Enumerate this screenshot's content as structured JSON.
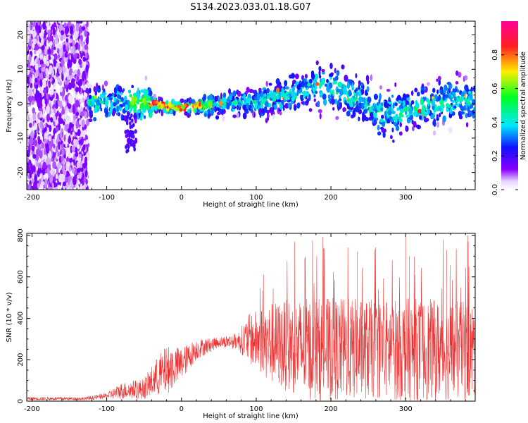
{
  "title": "S134.2023.033.01.18.G07",
  "colors": {
    "snr_line": "#ee3030",
    "axis": "#000000"
  },
  "chart_data": [
    {
      "type": "heatmap",
      "xlabel": "Height of straight line (km)",
      "ylabel": "Frequency (Hz)",
      "xlim": [
        -207,
        393
      ],
      "ylim": [
        -25,
        24
      ],
      "xticks": [
        -200,
        -100,
        0,
        100,
        200,
        300
      ],
      "yticks": [
        -20,
        -10,
        0,
        10,
        20
      ],
      "tick_labels_x": [
        "-200",
        "-100",
        "0",
        "100",
        "200",
        "300"
      ],
      "tick_labels_y": [
        "-20",
        "-10",
        "0",
        "10",
        "20"
      ],
      "colorbar": {
        "label": "Normalized spectral amplitude",
        "range": [
          0,
          1
        ],
        "ticks": [
          0.0,
          0.2,
          0.4,
          0.6,
          0.8
        ],
        "tick_labels": [
          "0.0",
          "0.2",
          "0.4",
          "0.6",
          "0.8"
        ]
      },
      "ridge_profile": [
        {
          "x": -120,
          "y": 0.0
        },
        {
          "x": -80,
          "y": 0.5
        },
        {
          "x": -50,
          "y": 0.2
        },
        {
          "x": -20,
          "y": -0.8
        },
        {
          "x": 0,
          "y": -1.2
        },
        {
          "x": 30,
          "y": -0.5
        },
        {
          "x": 60,
          "y": 0.0
        },
        {
          "x": 90,
          "y": 0.5
        },
        {
          "x": 120,
          "y": 1.5
        },
        {
          "x": 150,
          "y": 3.0
        },
        {
          "x": 175,
          "y": 5.0
        },
        {
          "x": 200,
          "y": 4.5
        },
        {
          "x": 230,
          "y": 2.0
        },
        {
          "x": 260,
          "y": -2.0
        },
        {
          "x": 290,
          "y": -3.0
        },
        {
          "x": 320,
          "y": -1.0
        },
        {
          "x": 360,
          "y": 1.0
        },
        {
          "x": 393,
          "y": 1.0
        }
      ]
    },
    {
      "type": "line",
      "xlabel": "Height of straight line (km)",
      "ylabel": "SNR (10 * v/v)",
      "xlim": [
        -207,
        393
      ],
      "ylim": [
        0,
        810
      ],
      "xticks": [
        -200,
        -100,
        0,
        100,
        200,
        300
      ],
      "yticks": [
        0,
        200,
        400,
        600,
        800
      ],
      "tick_labels_x": [
        "-200",
        "-100",
        "0",
        "100",
        "200",
        "300"
      ],
      "tick_labels_y": [
        "0",
        "200",
        "400",
        "600",
        "800"
      ],
      "envelope": [
        {
          "x": -207,
          "mean": 12,
          "spread": 8
        },
        {
          "x": -130,
          "mean": 12,
          "spread": 8
        },
        {
          "x": -100,
          "mean": 25,
          "spread": 15
        },
        {
          "x": -80,
          "mean": 50,
          "spread": 40
        },
        {
          "x": -50,
          "mean": 60,
          "spread": 50
        },
        {
          "x": -35,
          "mean": 110,
          "spread": 90
        },
        {
          "x": -20,
          "mean": 150,
          "spread": 120
        },
        {
          "x": 0,
          "mean": 180,
          "spread": 80
        },
        {
          "x": 20,
          "mean": 250,
          "spread": 50
        },
        {
          "x": 50,
          "mean": 285,
          "spread": 25
        },
        {
          "x": 75,
          "mean": 290,
          "spread": 40
        },
        {
          "x": 90,
          "mean": 300,
          "spread": 120
        },
        {
          "x": 120,
          "mean": 280,
          "spread": 200
        },
        {
          "x": 170,
          "mean": 250,
          "spread": 250
        },
        {
          "x": 220,
          "mean": 250,
          "spread": 250
        },
        {
          "x": 260,
          "mean": 250,
          "spread": 240
        },
        {
          "x": 300,
          "mean": 250,
          "spread": 250
        },
        {
          "x": 393,
          "mean": 240,
          "spread": 240
        }
      ],
      "peaks": [
        {
          "x": 300,
          "y": 800
        },
        {
          "x": 383,
          "y": 800
        },
        {
          "x": 355,
          "y": 730
        },
        {
          "x": 305,
          "y": 700
        },
        {
          "x": 190,
          "y": 740
        },
        {
          "x": 235,
          "y": 720
        },
        {
          "x": 165,
          "y": 690
        },
        {
          "x": 110,
          "y": 610
        }
      ]
    }
  ]
}
